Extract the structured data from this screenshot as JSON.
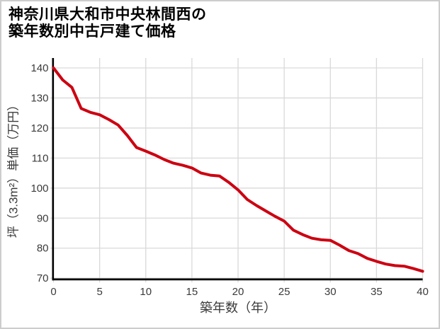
{
  "header": {
    "title_line1": "神奈川県大和市中央林間西の",
    "title_line2": "築年数別中古戸建て価格"
  },
  "chart_data": {
    "type": "line",
    "title": "神奈川県大和市中央林間西の築年数別中古戸建て価格",
    "xlabel": "築年数（年）",
    "ylabel": "坪（3.3m²）単価（万円）",
    "x": [
      0,
      1,
      2,
      3,
      4,
      5,
      6,
      7,
      8,
      9,
      10,
      11,
      12,
      13,
      14,
      15,
      16,
      17,
      18,
      19,
      20,
      21,
      22,
      23,
      24,
      25,
      26,
      27,
      28,
      29,
      30,
      31,
      32,
      33,
      34,
      35,
      36,
      37,
      38,
      39,
      40
    ],
    "values": [
      140,
      136,
      133.5,
      126.5,
      125.2,
      124.4,
      122.8,
      121,
      117.5,
      113.5,
      112.3,
      111,
      109.5,
      108.3,
      107.6,
      106.7,
      105,
      104.3,
      104,
      101.9,
      99.4,
      96.2,
      94.2,
      92.4,
      90.6,
      89,
      86,
      84.5,
      83.3,
      82.8,
      82.6,
      81,
      79.2,
      78.2,
      76.6,
      75.6,
      74.7,
      74.2,
      74,
      73.2,
      72.3
    ],
    "xlim": [
      0,
      40
    ],
    "ylim": [
      70,
      140
    ],
    "xticks": [
      0,
      5,
      10,
      15,
      20,
      25,
      30,
      35,
      40
    ],
    "yticks": [
      70,
      80,
      90,
      100,
      110,
      120,
      130,
      140
    ],
    "grid": true,
    "legend": false
  },
  "colors": {
    "line": "#cc0011",
    "grid": "#d9d9d9",
    "axis": "#000000",
    "tick_text": "#3a3a3a",
    "border": "#cdcdcd",
    "background": "#ffffff"
  }
}
